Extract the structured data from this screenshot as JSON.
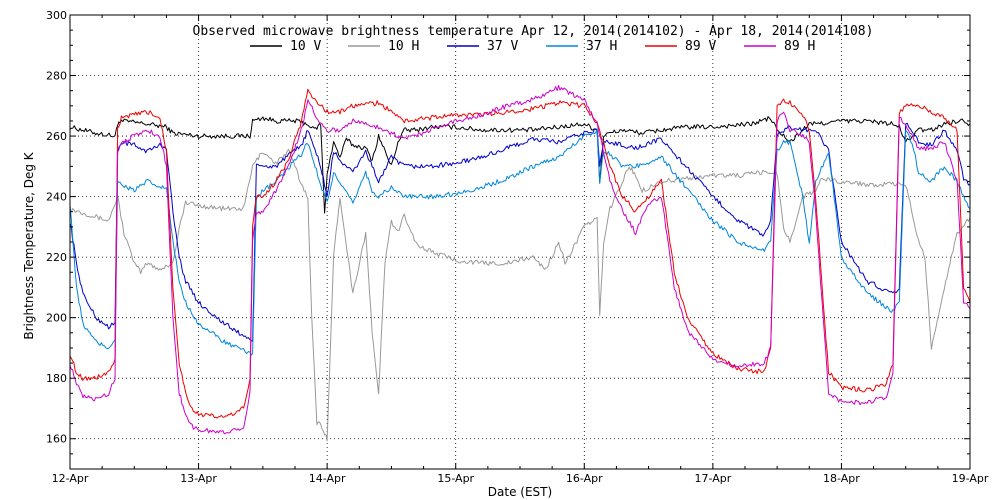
{
  "chart_data": {
    "type": "line",
    "title": "Observed microwave brightness temperature Apr 12, 2014(2014102) - Apr 18, 2014(2014108)",
    "xlabel": "Date (EST)",
    "ylabel": "Brightness Temperature, Deg K",
    "xlim": [
      0,
      7
    ],
    "ylim": [
      150,
      300
    ],
    "yticks": [
      160,
      180,
      200,
      220,
      240,
      260,
      280,
      300
    ],
    "xtick_labels": [
      "12-Apr",
      "13-Apr",
      "14-Apr",
      "15-Apr",
      "16-Apr",
      "17-Apr",
      "18-Apr",
      "19-Apr"
    ],
    "grid": true,
    "legend_position": "top",
    "series": [
      {
        "name": "10 V",
        "color": "#000000",
        "x": [
          0,
          0.2,
          0.35,
          0.38,
          0.4,
          0.6,
          0.75,
          0.8,
          1.0,
          1.3,
          1.4,
          1.42,
          1.5,
          1.6,
          1.75,
          1.85,
          1.9,
          1.95,
          1.98,
          2.0,
          2.05,
          2.1,
          2.15,
          2.2,
          2.3,
          2.35,
          2.4,
          2.45,
          2.5,
          2.55,
          2.6,
          2.7,
          2.8,
          3.0,
          3.2,
          3.4,
          3.6,
          3.8,
          4.0,
          4.1,
          4.12,
          4.15,
          4.2,
          4.3,
          4.45,
          4.6,
          4.8,
          5.0,
          5.3,
          5.45,
          5.5,
          5.55,
          5.6,
          5.7,
          5.75,
          5.8,
          6.0,
          6.2,
          6.4,
          6.45,
          6.5,
          6.55,
          6.6,
          6.7,
          6.8,
          6.9,
          6.95,
          7.0
        ],
        "y": [
          263,
          261,
          260,
          265,
          265,
          264,
          263,
          261,
          260,
          260,
          260,
          265,
          266,
          265,
          265,
          264,
          262,
          264,
          234,
          248,
          258,
          253,
          259,
          257,
          256,
          252,
          260,
          255,
          250,
          258,
          262,
          262,
          263,
          263,
          262,
          262,
          262,
          263,
          264,
          262,
          245,
          260,
          261,
          262,
          261,
          262,
          263,
          263,
          264,
          266,
          262,
          260,
          258,
          262,
          264,
          264,
          265,
          265,
          264,
          263,
          258,
          260,
          262,
          262,
          264,
          265,
          265,
          264
        ]
      },
      {
        "name": "10 H",
        "color": "#999999",
        "x": [
          0,
          0.15,
          0.3,
          0.37,
          0.42,
          0.5,
          0.55,
          0.6,
          0.7,
          0.8,
          0.85,
          0.9,
          1.0,
          1.2,
          1.35,
          1.42,
          1.5,
          1.6,
          1.7,
          1.75,
          1.8,
          1.85,
          1.88,
          1.92,
          1.95,
          2.0,
          2.05,
          2.1,
          2.2,
          2.3,
          2.35,
          2.4,
          2.45,
          2.5,
          2.55,
          2.6,
          2.7,
          2.8,
          3.0,
          3.2,
          3.4,
          3.6,
          3.7,
          3.8,
          3.85,
          4.0,
          4.1,
          4.12,
          4.15,
          4.2,
          4.35,
          4.4,
          4.45,
          4.6,
          4.8,
          5.0,
          5.2,
          5.4,
          5.5,
          5.52,
          5.55,
          5.6,
          5.7,
          5.8,
          5.85,
          6.0,
          6.2,
          6.4,
          6.5,
          6.6,
          6.65,
          6.7,
          6.8,
          6.9,
          7.0
        ],
        "y": [
          236,
          234,
          232,
          240,
          228,
          218,
          215,
          218,
          216,
          218,
          230,
          238,
          237,
          236,
          236,
          250,
          255,
          251,
          255,
          250,
          244,
          240,
          200,
          165,
          165,
          160,
          220,
          240,
          208,
          228,
          195,
          175,
          218,
          232,
          228,
          234,
          224,
          222,
          219,
          218,
          218,
          220,
          216,
          225,
          218,
          230,
          233,
          200,
          225,
          236,
          250,
          247,
          242,
          245,
          246,
          247,
          247,
          248,
          248,
          240,
          230,
          225,
          240,
          242,
          246,
          245,
          244,
          244,
          244,
          225,
          220,
          190,
          210,
          228,
          233
        ]
      },
      {
        "name": "37 V",
        "color": "#0000cc",
        "x": [
          0,
          0.05,
          0.1,
          0.2,
          0.3,
          0.35,
          0.37,
          0.4,
          0.5,
          0.6,
          0.7,
          0.75,
          0.8,
          0.85,
          0.9,
          1.0,
          1.2,
          1.35,
          1.4,
          1.42,
          1.45,
          1.6,
          1.8,
          1.85,
          1.95,
          2.0,
          2.05,
          2.1,
          2.2,
          2.3,
          2.35,
          2.4,
          2.5,
          2.6,
          2.8,
          3.0,
          3.2,
          3.4,
          3.6,
          3.8,
          4.0,
          4.1,
          4.12,
          4.15,
          4.2,
          4.3,
          4.4,
          4.6,
          5.0,
          5.2,
          5.4,
          5.45,
          5.5,
          5.55,
          5.6,
          5.7,
          5.8,
          5.9,
          6.0,
          6.2,
          6.4,
          6.45,
          6.5,
          6.55,
          6.6,
          6.7,
          6.8,
          6.9,
          6.95,
          7.0
        ],
        "y": [
          232,
          218,
          208,
          200,
          197,
          198,
          255,
          258,
          257,
          255,
          257,
          256,
          235,
          220,
          212,
          205,
          198,
          194,
          193,
          192,
          250,
          250,
          257,
          262,
          250,
          240,
          255,
          252,
          248,
          255,
          250,
          245,
          253,
          250,
          250,
          251,
          253,
          256,
          259,
          258,
          261,
          262,
          250,
          258,
          258,
          257,
          256,
          259,
          240,
          232,
          227,
          232,
          260,
          262,
          263,
          262,
          262,
          255,
          225,
          212,
          208,
          210,
          264,
          262,
          258,
          257,
          262,
          255,
          246,
          244
        ]
      },
      {
        "name": "37 H",
        "color": "#0088dd",
        "x": [
          0,
          0.05,
          0.1,
          0.2,
          0.3,
          0.35,
          0.37,
          0.4,
          0.5,
          0.6,
          0.7,
          0.75,
          0.8,
          0.85,
          0.9,
          1.0,
          1.2,
          1.35,
          1.4,
          1.42,
          1.45,
          1.6,
          1.8,
          1.85,
          1.95,
          2.0,
          2.05,
          2.1,
          2.2,
          2.3,
          2.35,
          2.4,
          2.5,
          2.6,
          2.8,
          3.0,
          3.2,
          3.4,
          3.6,
          3.8,
          4.0,
          4.1,
          4.12,
          4.15,
          4.2,
          4.3,
          4.4,
          4.6,
          5.0,
          5.2,
          5.4,
          5.45,
          5.5,
          5.55,
          5.6,
          5.7,
          5.75,
          5.8,
          5.9,
          6.0,
          6.2,
          6.4,
          6.45,
          6.5,
          6.55,
          6.6,
          6.7,
          6.8,
          6.9,
          6.95,
          7.0
        ],
        "y": [
          238,
          210,
          198,
          192,
          190,
          193,
          245,
          244,
          242,
          245,
          243,
          243,
          225,
          212,
          205,
          198,
          192,
          189,
          188,
          188,
          240,
          245,
          254,
          258,
          244,
          238,
          248,
          244,
          238,
          248,
          242,
          240,
          243,
          240,
          240,
          241,
          243,
          246,
          250,
          253,
          260,
          262,
          245,
          255,
          254,
          250,
          250,
          253,
          232,
          225,
          222,
          226,
          255,
          258,
          258,
          240,
          224,
          245,
          255,
          220,
          208,
          202,
          205,
          262,
          258,
          248,
          245,
          250,
          245,
          240,
          236
        ]
      },
      {
        "name": "89 V",
        "color": "#ee0000",
        "x": [
          0,
          0.05,
          0.1,
          0.2,
          0.3,
          0.35,
          0.37,
          0.4,
          0.5,
          0.6,
          0.7,
          0.75,
          0.8,
          0.85,
          0.9,
          0.95,
          1.0,
          1.2,
          1.35,
          1.4,
          1.42,
          1.45,
          1.5,
          1.6,
          1.7,
          1.8,
          1.85,
          1.95,
          2.0,
          2.1,
          2.2,
          2.4,
          2.6,
          2.8,
          3.0,
          3.2,
          3.4,
          3.6,
          3.8,
          4.0,
          4.1,
          4.15,
          4.2,
          4.3,
          4.4,
          4.5,
          4.6,
          4.7,
          4.8,
          5.0,
          5.2,
          5.4,
          5.45,
          5.5,
          5.55,
          5.6,
          5.7,
          5.75,
          5.8,
          5.85,
          5.9,
          6.0,
          6.2,
          6.35,
          6.4,
          6.45,
          6.5,
          6.6,
          6.7,
          6.8,
          6.9,
          6.95,
          7.0
        ],
        "y": [
          188,
          182,
          180,
          180,
          182,
          186,
          262,
          266,
          267,
          268,
          266,
          255,
          210,
          185,
          175,
          170,
          168,
          167,
          170,
          180,
          230,
          240,
          240,
          245,
          252,
          265,
          275,
          270,
          268,
          268,
          270,
          271,
          265,
          266,
          267,
          267,
          268,
          269,
          271,
          270,
          264,
          258,
          250,
          240,
          235,
          240,
          245,
          215,
          200,
          188,
          183,
          182,
          190,
          270,
          272,
          271,
          267,
          262,
          240,
          210,
          182,
          177,
          176,
          178,
          185,
          268,
          270,
          270,
          268,
          266,
          262,
          210,
          205
        ]
      },
      {
        "name": "89 H",
        "color": "#cc00cc",
        "x": [
          0,
          0.05,
          0.1,
          0.2,
          0.3,
          0.35,
          0.37,
          0.4,
          0.5,
          0.6,
          0.7,
          0.75,
          0.8,
          0.85,
          0.9,
          0.95,
          1.0,
          1.2,
          1.35,
          1.4,
          1.42,
          1.45,
          1.5,
          1.6,
          1.7,
          1.8,
          1.85,
          1.95,
          2.0,
          2.1,
          2.2,
          2.4,
          2.6,
          2.8,
          3.0,
          3.2,
          3.4,
          3.6,
          3.8,
          4.0,
          4.1,
          4.15,
          4.2,
          4.3,
          4.4,
          4.5,
          4.6,
          4.7,
          4.8,
          5.0,
          5.2,
          5.4,
          5.45,
          5.5,
          5.55,
          5.6,
          5.7,
          5.75,
          5.8,
          5.85,
          5.9,
          6.0,
          6.2,
          6.35,
          6.4,
          6.45,
          6.5,
          6.6,
          6.7,
          6.8,
          6.9,
          6.95,
          7.0
        ],
        "y": [
          185,
          178,
          174,
          173,
          175,
          180,
          255,
          258,
          260,
          262,
          260,
          250,
          200,
          175,
          168,
          164,
          163,
          162,
          164,
          175,
          225,
          235,
          235,
          242,
          250,
          262,
          272,
          264,
          262,
          262,
          265,
          263,
          259,
          262,
          265,
          267,
          270,
          272,
          276,
          272,
          264,
          255,
          245,
          235,
          228,
          238,
          240,
          210,
          196,
          186,
          184,
          185,
          190,
          265,
          268,
          262,
          260,
          258,
          235,
          205,
          175,
          172,
          172,
          174,
          182,
          266,
          264,
          256,
          256,
          258,
          245,
          205,
          203
        ]
      }
    ]
  }
}
